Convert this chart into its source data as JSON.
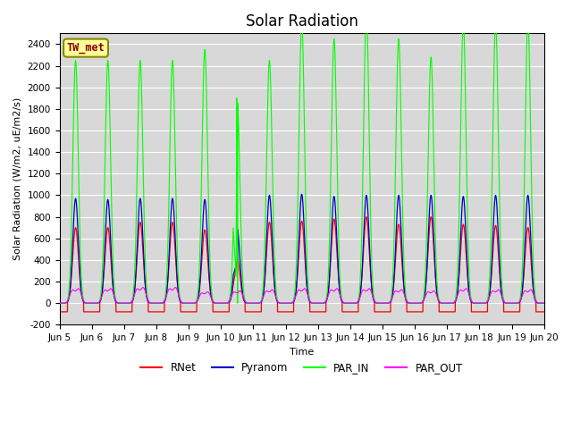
{
  "title": "Solar Radiation",
  "ylabel": "Solar Radiation (W/m2, uE/m2/s)",
  "xlabel": "Time",
  "ylim": [
    -200,
    2500
  ],
  "yticks": [
    -200,
    0,
    200,
    400,
    600,
    800,
    1000,
    1200,
    1400,
    1600,
    1800,
    2000,
    2200,
    2400
  ],
  "start_day": 5,
  "end_day": 20,
  "n_days": 15,
  "colors": {
    "RNet": "#ff0000",
    "Pyranom": "#0000cc",
    "PAR_IN": "#00ff00",
    "PAR_OUT": "#ff00ff"
  },
  "legend_label": "TW_met",
  "legend_box_color": "#ffff99",
  "legend_box_edge": "#888800",
  "background_color": "#d8d8d8",
  "grid_color": "#ffffff",
  "title_fontsize": 12,
  "axis_fontsize": 8,
  "tick_fontsize": 7.5,
  "rnet_night": -80,
  "rnet_peaks": [
    700,
    700,
    750,
    750,
    680,
    420,
    750,
    760,
    780,
    800,
    730,
    800,
    730,
    720,
    700
  ],
  "pyra_peaks": [
    970,
    960,
    970,
    970,
    960,
    700,
    1000,
    1010,
    990,
    1000,
    1000,
    1000,
    990,
    1000,
    1000
  ],
  "par_in_peaks": [
    2250,
    2250,
    2250,
    2250,
    2350,
    1900,
    2250,
    2600,
    2450,
    2700,
    2450,
    2280,
    2600,
    2600,
    2600
  ],
  "par_out_peaks": [
    130,
    130,
    140,
    140,
    100,
    110,
    120,
    130,
    130,
    130,
    120,
    110,
    130,
    120,
    120
  ]
}
